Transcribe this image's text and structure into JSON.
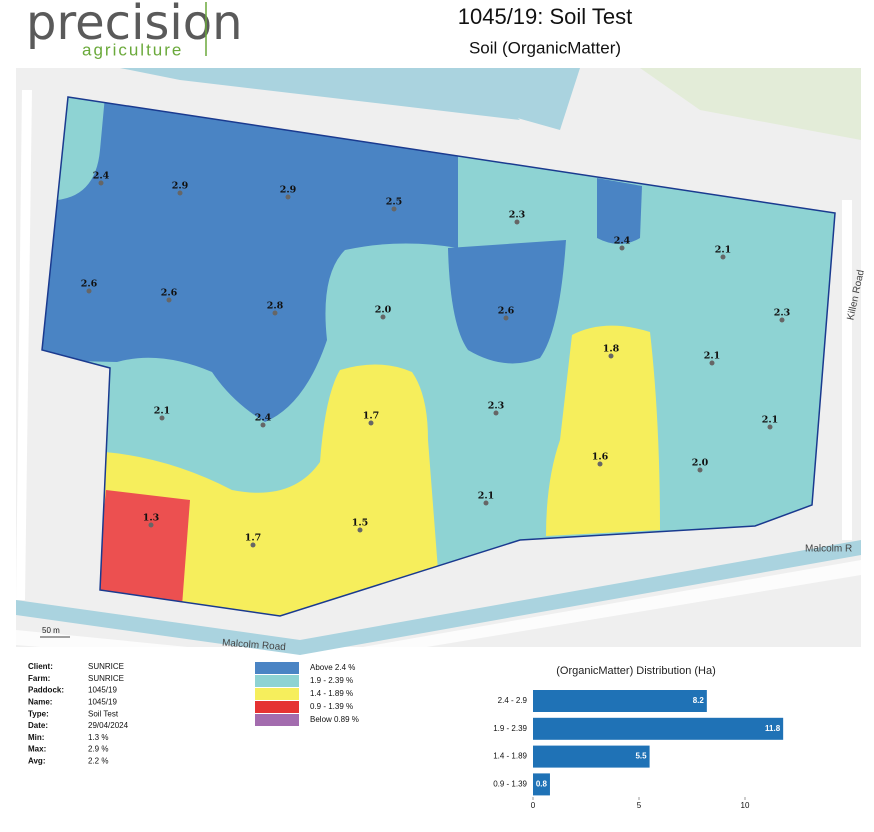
{
  "header": {
    "logo_top": "precision",
    "logo_bottom": "agriculture",
    "title": "1045/19: Soil Test",
    "subtitle": "Soil (OrganicMatter)"
  },
  "map": {
    "samples": [
      "2.4",
      "2.9",
      "2.9",
      "2.5",
      "2.3",
      "2.4",
      "2.1",
      "2.6",
      "2.6",
      "2.8",
      "2.0",
      "2.6",
      "2.3",
      "1.8",
      "2.1",
      "2.1",
      "2.4",
      "1.7",
      "2.3",
      "2.1",
      "1.6",
      "2.0",
      "2.1",
      "1.3",
      "1.7",
      "1.5"
    ],
    "roads": [
      "Killen Road",
      "Malcolm R",
      "Malcolm Road"
    ],
    "scale": "50 m"
  },
  "info": {
    "rows": [
      [
        "Client:",
        "SUNRICE"
      ],
      [
        "Farm:",
        "SUNRICE"
      ],
      [
        "Paddock:",
        "1045/19"
      ],
      [
        "Name:",
        "1045/19"
      ],
      [
        "Type:",
        "Soil Test"
      ],
      [
        "Date:",
        "29/04/2024"
      ],
      [
        "Min:",
        "1.3 %"
      ],
      [
        "Max:",
        "2.9 %"
      ],
      [
        "Avg:",
        "2.2 %"
      ]
    ]
  },
  "legend": {
    "items": [
      {
        "label": "Above 2.4 %",
        "color": "#4a84c4"
      },
      {
        "label": "1.9 - 2.39 %",
        "color": "#8ed3d3"
      },
      {
        "label": "1.4 - 1.89 %",
        "color": "#f6ee5c"
      },
      {
        "label": "0.9 - 1.39 %",
        "color": "#e53232"
      },
      {
        "label": "Below 0.89 %",
        "color": "#a36cae"
      }
    ]
  },
  "chart_data": {
    "type": "hbar",
    "title": "(OrganicMatter) Distribution (Ha)",
    "categories": [
      "2.4 - 2.9",
      "1.9 - 2.39",
      "1.4 - 1.89",
      "0.9 - 1.39"
    ],
    "values": [
      8.2,
      11.8,
      5.5,
      0.8
    ],
    "color": "#1f72b6",
    "xlim": [
      0,
      12
    ],
    "xticks": [
      0,
      5,
      10
    ]
  }
}
